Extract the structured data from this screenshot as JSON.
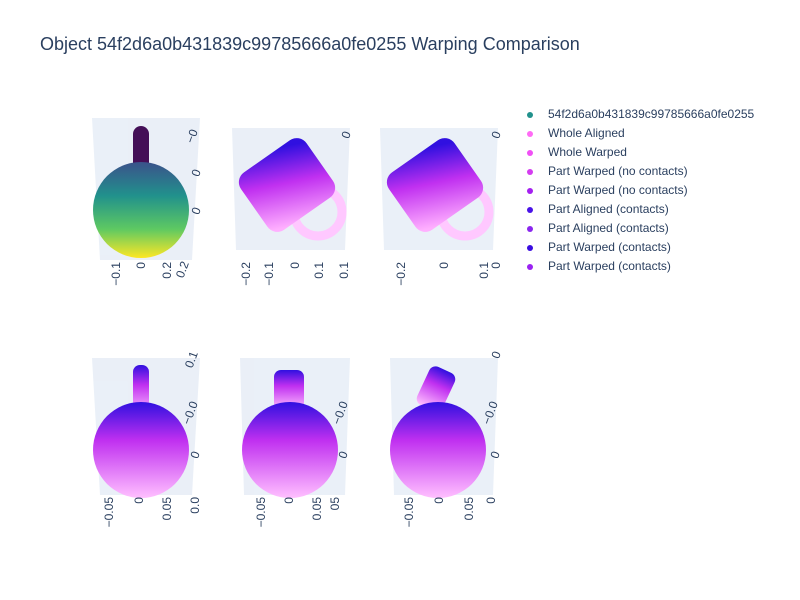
{
  "chart_data": {
    "type": "scatter3d",
    "title": "Object 54f2d6a0b431839c99785666a0fe0255 Warping Comparison",
    "series": [
      {
        "name": "54f2d6a0b431839c99785666a0fe0255",
        "color": "#21918c"
      },
      {
        "name": "Whole Aligned",
        "color": "#ff6bf5"
      },
      {
        "name": "Whole Warped",
        "color": "#f050f5"
      },
      {
        "name": "Part Warped (no contacts)",
        "color": "#d43cf0"
      },
      {
        "name": "Part Warped (no contacts)",
        "color": "#a41ff0"
      },
      {
        "name": "Part Aligned (contacts)",
        "color": "#4a12e8"
      },
      {
        "name": "Part Aligned (contacts)",
        "color": "#8a26ef"
      },
      {
        "name": "Part Warped (contacts)",
        "color": "#3a0ce0"
      },
      {
        "name": "Part Warped (contacts)",
        "color": "#9a22f2"
      }
    ],
    "scenes": [
      {
        "tick_labels": [
          "−0.1",
          "0",
          "0.2",
          "−0",
          "0",
          "0",
          "0.2"
        ]
      },
      {
        "tick_labels": [
          "−0.2",
          "−0.1",
          "0",
          "0.1",
          "0.1",
          "0"
        ]
      },
      {
        "tick_labels": [
          "−0.2",
          "0",
          "0.1",
          "0",
          "0"
        ]
      },
      {
        "tick_labels": [
          "−0.05",
          "0",
          "0.05",
          "0.0",
          "0.1",
          "−0.0",
          "0"
        ]
      },
      {
        "tick_labels": [
          "−0.05",
          "0",
          "0.05",
          "05",
          "−0.0",
          "0"
        ]
      },
      {
        "tick_labels": [
          "−0.05",
          "0",
          "0.05",
          "0",
          "0",
          "−0.0",
          "0"
        ]
      }
    ]
  }
}
